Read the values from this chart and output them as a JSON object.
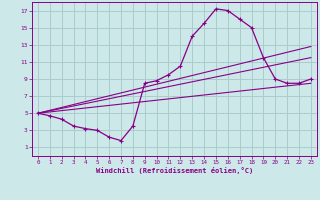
{
  "xlabel": "Windchill (Refroidissement éolien,°C)",
  "background_color": "#cce8e8",
  "grid_color": "#aacccc",
  "line_color": "#880088",
  "spine_color": "#880088",
  "xlim": [
    -0.5,
    23.5
  ],
  "ylim": [
    0,
    18
  ],
  "xticks": [
    0,
    1,
    2,
    3,
    4,
    5,
    6,
    7,
    8,
    9,
    10,
    11,
    12,
    13,
    14,
    15,
    16,
    17,
    18,
    19,
    20,
    21,
    22,
    23
  ],
  "yticks": [
    1,
    3,
    5,
    7,
    9,
    11,
    13,
    15,
    17
  ],
  "curve_x": [
    0,
    1,
    2,
    3,
    4,
    5,
    6,
    7,
    8,
    9,
    10,
    11,
    12,
    13,
    14,
    15,
    16,
    17,
    18,
    19,
    20,
    21,
    22,
    23
  ],
  "curve_y": [
    5.0,
    4.7,
    4.3,
    3.5,
    3.2,
    3.0,
    2.2,
    1.8,
    3.5,
    8.5,
    8.8,
    9.5,
    10.5,
    14.0,
    15.5,
    17.2,
    17.0,
    16.0,
    15.0,
    11.5,
    9.0,
    8.5,
    8.5,
    9.0
  ],
  "line1_x": [
    0,
    23
  ],
  "line1_y": [
    5.0,
    8.5
  ],
  "line2_x": [
    0,
    23
  ],
  "line2_y": [
    5.0,
    11.5
  ],
  "line3_x": [
    0,
    23
  ],
  "line3_y": [
    5.0,
    12.8
  ]
}
